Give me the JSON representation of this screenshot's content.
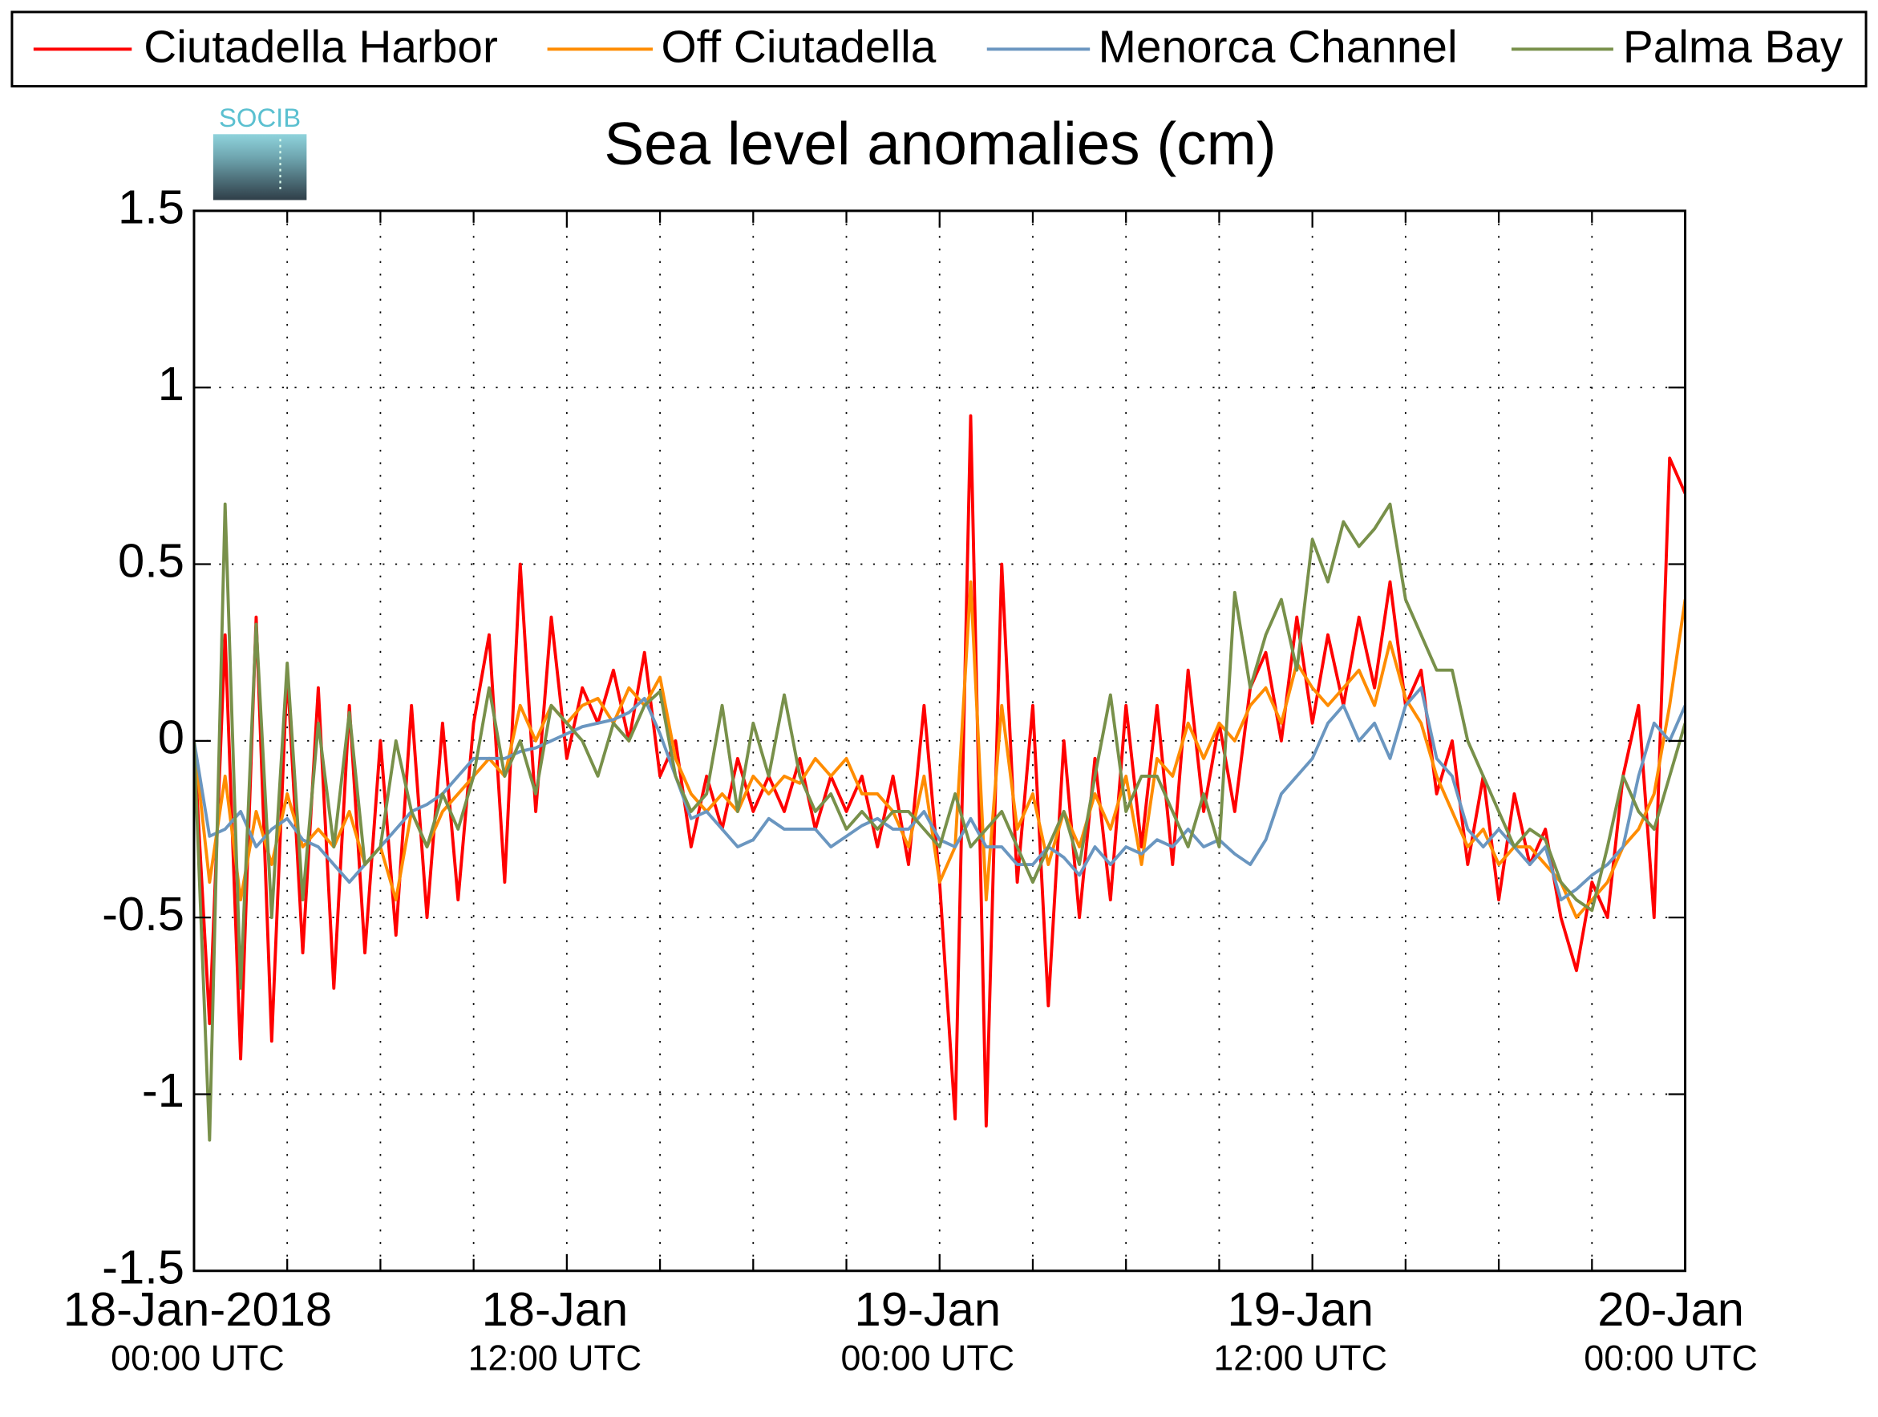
{
  "chart_data": {
    "type": "line",
    "title": "Sea level anomalies (cm)",
    "logo_text": "SOCIB",
    "legend": "top",
    "grid": true,
    "ylim": [
      -1.5,
      1.5
    ],
    "yticks": [
      -1.5,
      -1,
      -0.5,
      0,
      0.5,
      1,
      1.5
    ],
    "xlim": [
      "2018-01-18 00:00",
      "2018-01-20 00:00"
    ],
    "xticks": [
      {
        "value": "2018-01-18 00:00",
        "label": [
          "18-Jan-2018",
          "00:00 UTC"
        ]
      },
      {
        "value": "2018-01-18 12:00",
        "label": [
          "18-Jan",
          "12:00 UTC"
        ]
      },
      {
        "value": "2018-01-19 00:00",
        "label": [
          "19-Jan",
          "00:00 UTC"
        ]
      },
      {
        "value": "2018-01-19 12:00",
        "label": [
          "19-Jan",
          "12:00 UTC"
        ]
      },
      {
        "value": "2018-01-20 00:00",
        "label": [
          "20-Jan",
          "00:00 UTC"
        ]
      }
    ],
    "xminor": [
      "2018-01-18 03:00",
      "2018-01-18 06:00",
      "2018-01-18 09:00",
      "2018-01-18 15:00",
      "2018-01-18 18:00",
      "2018-01-18 21:00",
      "2018-01-19 03:00",
      "2018-01-19 06:00",
      "2018-01-19 09:00",
      "2018-01-19 15:00",
      "2018-01-19 18:00",
      "2018-01-19 21:00"
    ],
    "x": [
      "2018-01-18 00:00",
      "2018-01-18 00:30",
      "2018-01-18 01:00",
      "2018-01-18 01:30",
      "2018-01-18 02:00",
      "2018-01-18 02:30",
      "2018-01-18 03:00",
      "2018-01-18 03:30",
      "2018-01-18 04:00",
      "2018-01-18 04:30",
      "2018-01-18 05:00",
      "2018-01-18 05:30",
      "2018-01-18 06:00",
      "2018-01-18 06:30",
      "2018-01-18 07:00",
      "2018-01-18 07:30",
      "2018-01-18 08:00",
      "2018-01-18 08:30",
      "2018-01-18 09:00",
      "2018-01-18 09:30",
      "2018-01-18 10:00",
      "2018-01-18 10:30",
      "2018-01-18 11:00",
      "2018-01-18 11:30",
      "2018-01-18 12:00",
      "2018-01-18 12:30",
      "2018-01-18 13:00",
      "2018-01-18 13:30",
      "2018-01-18 14:00",
      "2018-01-18 14:30",
      "2018-01-18 15:00",
      "2018-01-18 15:30",
      "2018-01-18 16:00",
      "2018-01-18 16:30",
      "2018-01-18 17:00",
      "2018-01-18 17:30",
      "2018-01-18 18:00",
      "2018-01-18 18:30",
      "2018-01-18 19:00",
      "2018-01-18 19:30",
      "2018-01-18 20:00",
      "2018-01-18 20:30",
      "2018-01-18 21:00",
      "2018-01-18 21:30",
      "2018-01-18 22:00",
      "2018-01-18 22:30",
      "2018-01-18 23:00",
      "2018-01-18 23:30",
      "2018-01-19 00:00",
      "2018-01-19 00:30",
      "2018-01-19 01:00",
      "2018-01-19 01:30",
      "2018-01-19 02:00",
      "2018-01-19 02:30",
      "2018-01-19 03:00",
      "2018-01-19 03:30",
      "2018-01-19 04:00",
      "2018-01-19 04:30",
      "2018-01-19 05:00",
      "2018-01-19 05:30",
      "2018-01-19 06:00",
      "2018-01-19 06:30",
      "2018-01-19 07:00",
      "2018-01-19 07:30",
      "2018-01-19 08:00",
      "2018-01-19 08:30",
      "2018-01-19 09:00",
      "2018-01-19 09:30",
      "2018-01-19 10:00",
      "2018-01-19 10:30",
      "2018-01-19 11:00",
      "2018-01-19 11:30",
      "2018-01-19 12:00",
      "2018-01-19 12:30",
      "2018-01-19 13:00",
      "2018-01-19 13:30",
      "2018-01-19 14:00",
      "2018-01-19 14:30",
      "2018-01-19 15:00",
      "2018-01-19 15:30",
      "2018-01-19 16:00",
      "2018-01-19 16:30",
      "2018-01-19 17:00",
      "2018-01-19 17:30",
      "2018-01-19 18:00",
      "2018-01-19 18:30",
      "2018-01-19 19:00",
      "2018-01-19 19:30",
      "2018-01-19 20:00",
      "2018-01-19 20:30",
      "2018-01-19 21:00",
      "2018-01-19 21:30",
      "2018-01-19 22:00",
      "2018-01-19 22:30",
      "2018-01-19 23:00",
      "2018-01-19 23:30",
      "2018-01-20 00:00"
    ],
    "series": [
      {
        "name": "Ciutadella Harbor",
        "color": "#ff0000",
        "values": [
          0,
          -0.8,
          0.3,
          -0.9,
          0.35,
          -0.85,
          0.2,
          -0.6,
          0.15,
          -0.7,
          0.1,
          -0.6,
          0,
          -0.55,
          0.1,
          -0.5,
          0.05,
          -0.45,
          0.05,
          0.3,
          -0.4,
          0.5,
          -0.2,
          0.35,
          -0.05,
          0.15,
          0.05,
          0.2,
          0,
          0.25,
          -0.1,
          0,
          -0.3,
          -0.1,
          -0.25,
          -0.05,
          -0.2,
          -0.1,
          -0.2,
          -0.05,
          -0.25,
          -0.1,
          -0.2,
          -0.1,
          -0.3,
          -0.1,
          -0.35,
          0.1,
          -0.4,
          -1.07,
          0.92,
          -1.09,
          0.5,
          -0.4,
          0.1,
          -0.75,
          0,
          -0.5,
          -0.05,
          -0.45,
          0.1,
          -0.3,
          0.1,
          -0.35,
          0.2,
          -0.2,
          0.05,
          -0.2,
          0.15,
          0.25,
          0,
          0.35,
          0.05,
          0.3,
          0.1,
          0.35,
          0.15,
          0.45,
          0.1,
          0.2,
          -0.15,
          0,
          -0.35,
          -0.1,
          -0.45,
          -0.15,
          -0.35,
          -0.25,
          -0.5,
          -0.65,
          -0.4,
          -0.5,
          -0.1,
          0.1,
          -0.5,
          0.8,
          0.7
        ]
      },
      {
        "name": "Off Ciutadella",
        "color": "#ff8c00",
        "values": [
          0,
          -0.4,
          -0.1,
          -0.45,
          -0.2,
          -0.35,
          -0.15,
          -0.3,
          -0.25,
          -0.3,
          -0.2,
          -0.35,
          -0.3,
          -0.45,
          -0.2,
          -0.3,
          -0.2,
          -0.15,
          -0.1,
          -0.05,
          -0.1,
          0.1,
          0,
          0.1,
          0.05,
          0.1,
          0.12,
          0.05,
          0.15,
          0.1,
          0.18,
          -0.05,
          -0.15,
          -0.2,
          -0.15,
          -0.2,
          -0.1,
          -0.15,
          -0.1,
          -0.12,
          -0.05,
          -0.1,
          -0.05,
          -0.15,
          -0.15,
          -0.2,
          -0.3,
          -0.1,
          -0.4,
          -0.3,
          0.45,
          -0.45,
          0.1,
          -0.25,
          -0.15,
          -0.35,
          -0.2,
          -0.3,
          -0.15,
          -0.25,
          -0.1,
          -0.35,
          -0.05,
          -0.1,
          0.05,
          -0.05,
          0.05,
          0,
          0.1,
          0.15,
          0.05,
          0.22,
          0.15,
          0.1,
          0.15,
          0.2,
          0.1,
          0.28,
          0.12,
          0.05,
          -0.1,
          -0.2,
          -0.3,
          -0.25,
          -0.35,
          -0.3,
          -0.3,
          -0.35,
          -0.4,
          -0.5,
          -0.45,
          -0.4,
          -0.3,
          -0.25,
          -0.15,
          0.1,
          0.4
        ]
      },
      {
        "name": "Menorca Channel",
        "color": "#6a96c0",
        "values": [
          0,
          -0.27,
          -0.25,
          -0.2,
          -0.3,
          -0.25,
          -0.22,
          -0.28,
          -0.3,
          -0.35,
          -0.4,
          -0.35,
          -0.3,
          -0.25,
          -0.2,
          -0.18,
          -0.15,
          -0.1,
          -0.05,
          -0.05,
          -0.05,
          -0.03,
          -0.02,
          0,
          0.02,
          0.04,
          0.05,
          0.06,
          0.08,
          0.12,
          0.02,
          -0.1,
          -0.22,
          -0.2,
          -0.25,
          -0.3,
          -0.28,
          -0.22,
          -0.25,
          -0.25,
          -0.25,
          -0.3,
          -0.27,
          -0.24,
          -0.22,
          -0.25,
          -0.25,
          -0.2,
          -0.28,
          -0.3,
          -0.22,
          -0.3,
          -0.3,
          -0.35,
          -0.35,
          -0.3,
          -0.33,
          -0.38,
          -0.3,
          -0.35,
          -0.3,
          -0.32,
          -0.28,
          -0.3,
          -0.25,
          -0.3,
          -0.28,
          -0.32,
          -0.35,
          -0.28,
          -0.15,
          -0.1,
          -0.05,
          0.05,
          0.1,
          0,
          0.05,
          -0.05,
          0.1,
          0.15,
          -0.05,
          -0.1,
          -0.25,
          -0.3,
          -0.25,
          -0.3,
          -0.35,
          -0.3,
          -0.45,
          -0.42,
          -0.38,
          -0.35,
          -0.3,
          -0.1,
          0.05,
          0,
          0.1
        ]
      },
      {
        "name": "Palma Bay",
        "color": "#78904a",
        "values": [
          0,
          -1.13,
          0.67,
          -0.7,
          0.33,
          -0.5,
          0.22,
          -0.45,
          0.05,
          -0.3,
          0.08,
          -0.35,
          -0.3,
          0,
          -0.2,
          -0.3,
          -0.15,
          -0.25,
          -0.1,
          0.15,
          -0.1,
          0,
          -0.15,
          0.1,
          0.05,
          0,
          -0.1,
          0.05,
          0,
          0.1,
          0.14,
          -0.1,
          -0.2,
          -0.15,
          0.1,
          -0.2,
          0.05,
          -0.1,
          0.13,
          -0.1,
          -0.2,
          -0.15,
          -0.25,
          -0.2,
          -0.25,
          -0.2,
          -0.2,
          -0.25,
          -0.3,
          -0.15,
          -0.3,
          -0.25,
          -0.2,
          -0.3,
          -0.4,
          -0.3,
          -0.2,
          -0.35,
          -0.1,
          0.13,
          -0.2,
          -0.1,
          -0.1,
          -0.2,
          -0.3,
          -0.15,
          -0.3,
          0.42,
          0.15,
          0.3,
          0.4,
          0.2,
          0.57,
          0.45,
          0.62,
          0.55,
          0.6,
          0.67,
          0.4,
          0.3,
          0.2,
          0.2,
          0,
          -0.1,
          -0.2,
          -0.3,
          -0.25,
          -0.28,
          -0.4,
          -0.45,
          -0.48,
          -0.3,
          -0.1,
          -0.2,
          -0.25,
          -0.1,
          0.05
        ]
      }
    ]
  }
}
